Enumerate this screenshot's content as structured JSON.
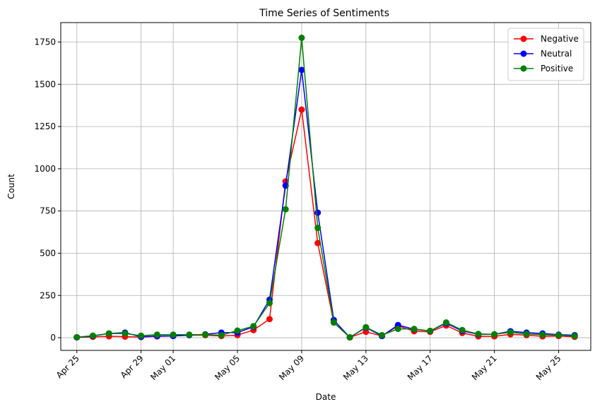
{
  "chart_data": {
    "type": "line",
    "title": "Time Series of Sentiments",
    "xlabel": "Date",
    "ylabel": "Count",
    "x_start": "2024-04-25",
    "x_end": "2024-05-26",
    "xlim": [
      "2024-04-24",
      "2024-05-27"
    ],
    "ylim": [
      -75,
      1865
    ],
    "yticks": [
      0,
      250,
      500,
      750,
      1000,
      1250,
      1500,
      1750
    ],
    "xticks": [
      {
        "date": "2024-04-25",
        "label": "Apr 25"
      },
      {
        "date": "2024-04-29",
        "label": "Apr 29"
      },
      {
        "date": "2024-05-01",
        "label": "May 01"
      },
      {
        "date": "2024-05-05",
        "label": "May 05"
      },
      {
        "date": "2024-05-09",
        "label": "May 09"
      },
      {
        "date": "2024-05-13",
        "label": "May 13"
      },
      {
        "date": "2024-05-17",
        "label": "May 17"
      },
      {
        "date": "2024-05-21",
        "label": "May 21"
      },
      {
        "date": "2024-05-25",
        "label": "May 25"
      }
    ],
    "grid": true,
    "legend_position": "top-right",
    "series": [
      {
        "name": "Negative",
        "color": "#ff0000",
        "values": [
          2,
          5,
          8,
          6,
          4,
          8,
          10,
          15,
          15,
          10,
          15,
          45,
          110,
          925,
          1350,
          560,
          90,
          2,
          35,
          10,
          70,
          38,
          35,
          72,
          28,
          8,
          8,
          20,
          15,
          8,
          10,
          5
        ]
      },
      {
        "name": "Neutral",
        "color": "#0000ff",
        "values": [
          2,
          10,
          25,
          30,
          5,
          10,
          10,
          15,
          20,
          30,
          30,
          65,
          225,
          900,
          1585,
          740,
          105,
          2,
          60,
          10,
          75,
          50,
          40,
          85,
          40,
          20,
          20,
          38,
          30,
          25,
          18,
          15
        ]
      },
      {
        "name": "Positive",
        "color": "#008000",
        "values": [
          3,
          12,
          25,
          25,
          12,
          18,
          18,
          18,
          18,
          15,
          42,
          68,
          205,
          760,
          1775,
          650,
          90,
          2,
          62,
          15,
          52,
          52,
          40,
          90,
          45,
          22,
          20,
          32,
          22,
          18,
          15,
          10
        ]
      }
    ]
  }
}
